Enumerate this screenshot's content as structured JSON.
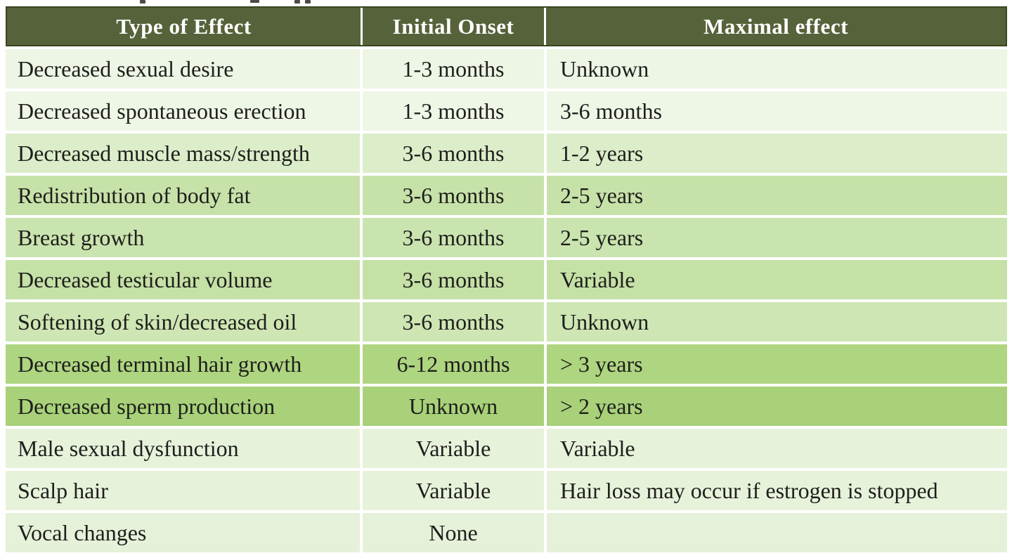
{
  "page": {
    "background": "#ffffff"
  },
  "table": {
    "header": {
      "bg": "#56633a",
      "border_color": "#39451f",
      "text_color": "#ffffff",
      "columns": [
        "Type of Effect",
        "Initial Onset",
        "Maximal effect"
      ]
    },
    "body_text_color": "#1e1e1c",
    "separator_color": "#ffffff",
    "rows": [
      {
        "effect": "Decreased sexual desire",
        "onset": "1-3 months",
        "maximal": "Unknown",
        "bg": "#edf5e4"
      },
      {
        "effect": "Decreased spontaneous erection",
        "onset": "1-3 months",
        "maximal": "3-6 months",
        "bg": "#eef6e6"
      },
      {
        "effect": "Decreased muscle mass/strength",
        "onset": "3-6 months",
        "maximal": "1-2 years",
        "bg": "#dcedc9"
      },
      {
        "effect": "Redistribution of body fat",
        "onset": "3-6 months",
        "maximal": "2-5 years",
        "bg": "#c7e2a9"
      },
      {
        "effect": "Breast growth",
        "onset": "3-6 months",
        "maximal": "2-5 years",
        "bg": "#c9e4ae"
      },
      {
        "effect": "Decreased testicular volume",
        "onset": "3-6 months",
        "maximal": "Variable",
        "bg": "#c5e1a6"
      },
      {
        "effect": "Softening of skin/decreased oil",
        "onset": "3-6 months",
        "maximal": "Unknown",
        "bg": "#cee6b3"
      },
      {
        "effect": "Decreased terminal hair growth",
        "onset": "6-12 months",
        "maximal": "> 3 years",
        "bg": "#aed580"
      },
      {
        "effect": "Decreased sperm production",
        "onset": "Unknown",
        "maximal": "> 2 years",
        "bg": "#a8d179"
      },
      {
        "effect": "Male sexual dysfunction",
        "onset": "Variable",
        "maximal": "Variable",
        "bg": "#e7f2db"
      },
      {
        "effect": "Scalp hair",
        "onset": "Variable",
        "maximal": "Hair loss may occur if estrogen is stopped",
        "bg": "#e7f2db"
      },
      {
        "effect": "Vocal changes",
        "onset": "None",
        "maximal": "",
        "bg": "#e5f1d8"
      }
    ]
  },
  "chart_data": {
    "type": "table",
    "columns": [
      "Type of Effect",
      "Initial Onset",
      "Maximal effect"
    ],
    "rows": [
      [
        "Decreased sexual desire",
        "1-3 months",
        "Unknown"
      ],
      [
        "Decreased spontaneous erection",
        "1-3 months",
        "3-6 months"
      ],
      [
        "Decreased muscle mass/strength",
        "3-6 months",
        "1-2 years"
      ],
      [
        "Redistribution of body fat",
        "3-6 months",
        "2-5 years"
      ],
      [
        "Breast growth",
        "3-6 months",
        "2-5 years"
      ],
      [
        "Decreased testicular volume",
        "3-6 months",
        "Variable"
      ],
      [
        "Softening of skin/decreased oil",
        "3-6 months",
        "Unknown"
      ],
      [
        "Decreased terminal hair growth",
        "6-12 months",
        "> 3 years"
      ],
      [
        "Decreased sperm production",
        "Unknown",
        "> 2 years"
      ],
      [
        "Male sexual dysfunction",
        "Variable",
        "Variable"
      ],
      [
        "Scalp hair",
        "Variable",
        "Hair loss may occur if estrogen is stopped"
      ],
      [
        "Vocal changes",
        "None",
        ""
      ]
    ]
  }
}
